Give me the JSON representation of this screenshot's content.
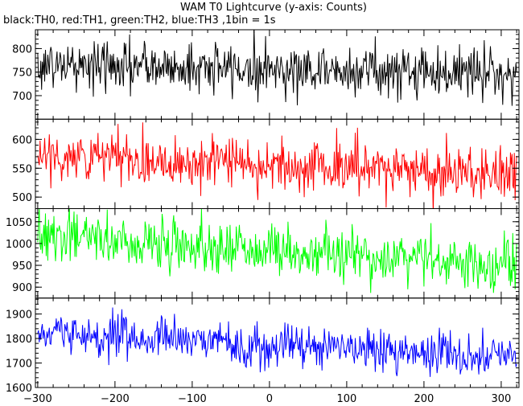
{
  "header": {
    "title": "WAM T0 Lightcurve (y-axis: Counts)",
    "subtitle": "black:TH0, red:TH1, green:TH2, blue:TH3 ,1bin = 1s"
  },
  "chart_data": {
    "type": "line",
    "title": "WAM T0 Lightcurve (y-axis: Counts)",
    "subtitle": "black:TH0, red:TH1, green:TH2, blue:TH3 ,1bin = 1s",
    "ylabel": "Counts",
    "xlim": [
      -303,
      323
    ],
    "x_ticks": [
      -300,
      -200,
      -100,
      0,
      100,
      200,
      300
    ],
    "x_tick_labels": [
      "−300",
      "−200",
      "−100",
      "0",
      "100",
      "200",
      "300"
    ],
    "bin_seconds": 1,
    "grid": false,
    "legend": "none",
    "panels": [
      {
        "name": "TH0",
        "color": "#000000",
        "ylim": [
          650,
          840
        ],
        "y_ticks": [
          700,
          750,
          800
        ],
        "trend": {
          "start": 765,
          "end": 748
        },
        "noise_sd": 27,
        "values_sample": [
          {
            "x": -300,
            "y": 765
          },
          {
            "x": -200,
            "y": 762
          },
          {
            "x": -100,
            "y": 759
          },
          {
            "x": 0,
            "y": 756
          },
          {
            "x": 100,
            "y": 753
          },
          {
            "x": 200,
            "y": 751
          },
          {
            "x": 300,
            "y": 748
          }
        ]
      },
      {
        "name": "TH1",
        "color": "#ff0000",
        "ylim": [
          480,
          635
        ],
        "y_ticks": [
          500,
          550,
          600
        ],
        "trend": {
          "start": 572,
          "end": 540
        },
        "noise_sd": 23,
        "values_sample": [
          {
            "x": -300,
            "y": 572
          },
          {
            "x": -200,
            "y": 566
          },
          {
            "x": -100,
            "y": 560
          },
          {
            "x": 0,
            "y": 555
          },
          {
            "x": 100,
            "y": 550
          },
          {
            "x": 200,
            "y": 545
          },
          {
            "x": 300,
            "y": 540
          }
        ]
      },
      {
        "name": "TH2",
        "color": "#00ff00",
        "ylim": [
          875,
          1080
        ],
        "y_ticks": [
          900,
          950,
          1000,
          1050
        ],
        "trend": {
          "start": 1018,
          "end": 950
        },
        "noise_sd": 30,
        "values_sample": [
          {
            "x": -300,
            "y": 1018
          },
          {
            "x": -200,
            "y": 1006
          },
          {
            "x": -100,
            "y": 994
          },
          {
            "x": 0,
            "y": 982
          },
          {
            "x": 100,
            "y": 972
          },
          {
            "x": 200,
            "y": 961
          },
          {
            "x": 300,
            "y": 950
          }
        ]
      },
      {
        "name": "TH3",
        "color": "#0000ff",
        "ylim": [
          1600,
          1965
        ],
        "y_ticks": [
          1600,
          1700,
          1800,
          1900
        ],
        "trend": {
          "start": 1818,
          "end": 1728
        },
        "noise_sd": 42,
        "values_sample": [
          {
            "x": -300,
            "y": 1818
          },
          {
            "x": -200,
            "y": 1803
          },
          {
            "x": -100,
            "y": 1788
          },
          {
            "x": 0,
            "y": 1773
          },
          {
            "x": 100,
            "y": 1758
          },
          {
            "x": 200,
            "y": 1743
          },
          {
            "x": 300,
            "y": 1728
          }
        ]
      }
    ]
  }
}
